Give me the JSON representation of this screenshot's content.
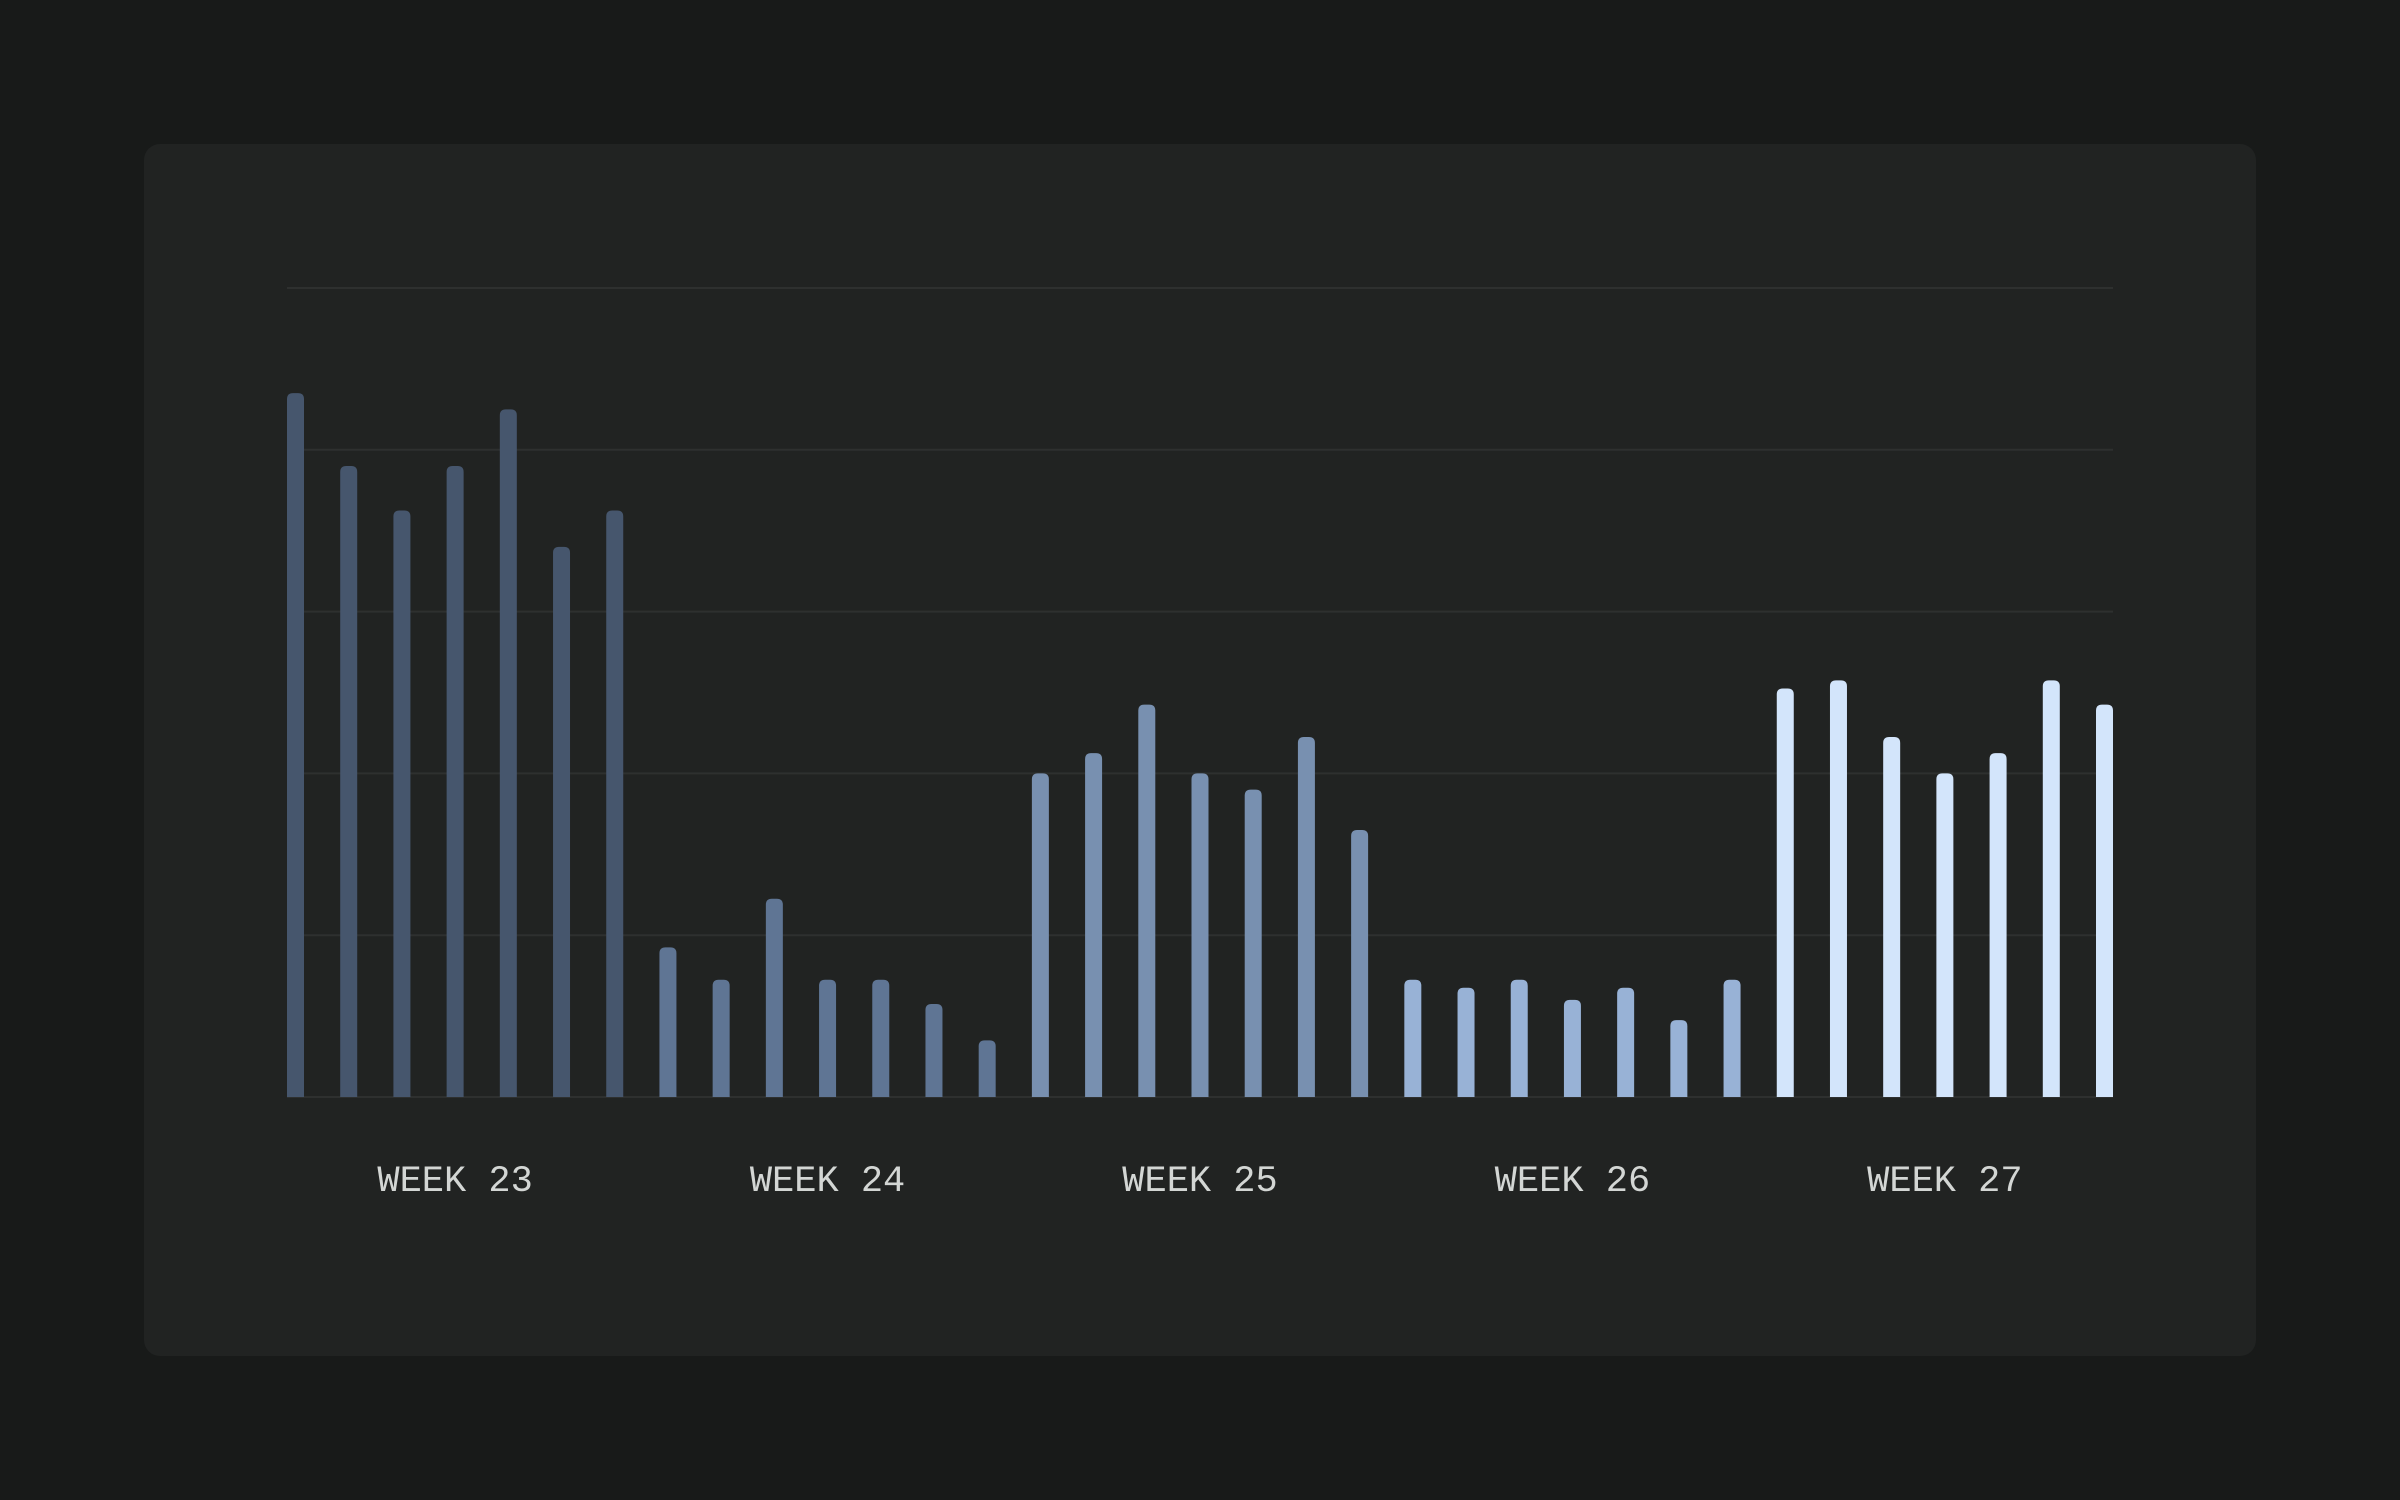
{
  "chart_data": {
    "type": "bar",
    "title": "",
    "xlabel": "",
    "ylabel": "",
    "ylim": [
      0,
      100
    ],
    "grid": true,
    "gridlines": [
      0,
      20,
      40,
      60,
      80,
      100
    ],
    "groups": [
      {
        "label": "WEEK 23",
        "color": "#46566d",
        "values": [
          87,
          78,
          72.5,
          78,
          85,
          68,
          72.5
        ]
      },
      {
        "label": "WEEK 24",
        "color": "#5f7594",
        "values": [
          18.5,
          14.5,
          24.5,
          14.5,
          14.5,
          11.5,
          7
        ]
      },
      {
        "label": "WEEK 25",
        "color": "#7890b0",
        "values": [
          40,
          42.5,
          48.5,
          40,
          38,
          44.5,
          33
        ]
      },
      {
        "label": "WEEK 26",
        "color": "#98b2d6",
        "values": [
          14.5,
          13.5,
          14.5,
          12,
          13.5,
          9.5,
          14.5
        ]
      },
      {
        "label": "WEEK 27",
        "color": "#d3e5fb",
        "values": [
          50.5,
          51.5,
          44.5,
          40,
          42.5,
          51.5,
          48.5
        ]
      }
    ]
  }
}
